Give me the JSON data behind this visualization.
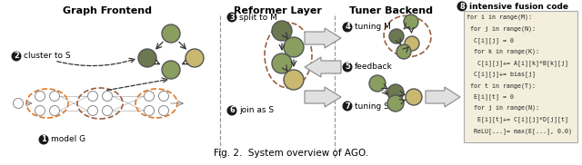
{
  "title": "Fig. 2.  System overview of AGO.",
  "section_titles": [
    "Graph Frontend",
    "Reformer Layer",
    "Tuner Backend"
  ],
  "code_text": [
    "for i in range(M):",
    " for j in range(N):",
    "  C[i][j] = 0",
    "  for k in range(K):",
    "   C[i][j]+= A[i][k]*B[k][j]",
    "  C[i][j]+= bias[j]",
    " for t in range(T):",
    "  E[i][t] = 0",
    "  for j in range(N):",
    "   E[i][t]+= C[i][j]*D[j][t]",
    "  ReLU[...]= max(E[...], 0.0)"
  ],
  "node_dark": "#6b7850",
  "node_mid": "#8a9e5f",
  "node_light": "#c8b870",
  "node_white": "#ffffff",
  "orange_dashed": "#e07828",
  "brown_dashed": "#9a6040",
  "code_bg": "#f4eedc",
  "badge_color": "#1a1a1a",
  "divider_color": "#999999",
  "arrow_gray": "#888888"
}
